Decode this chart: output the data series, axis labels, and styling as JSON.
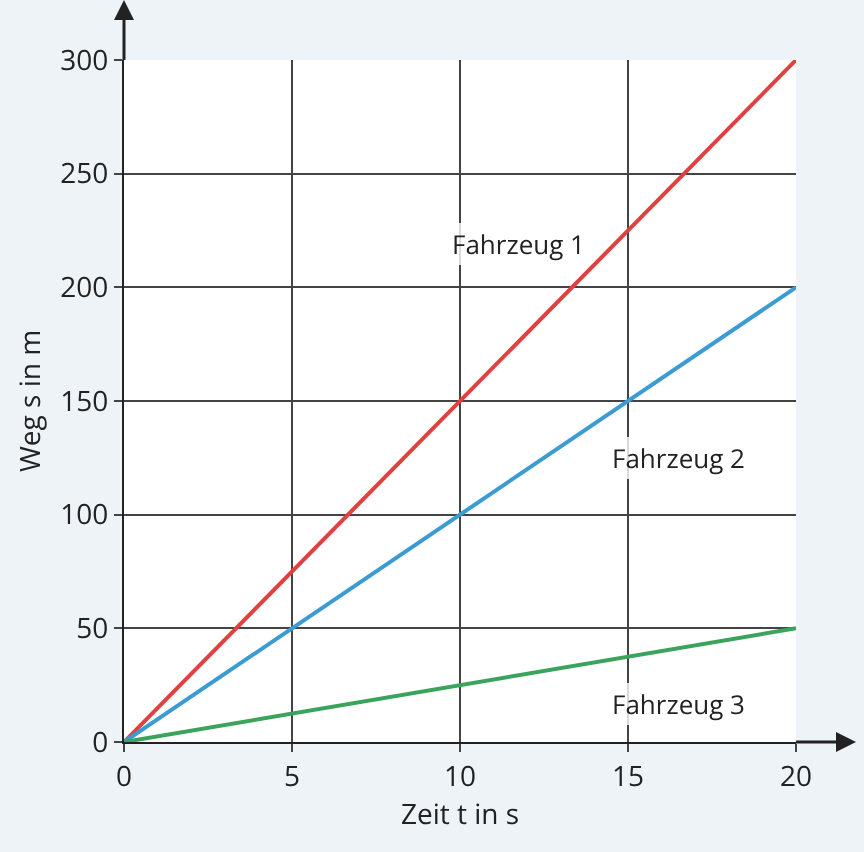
{
  "chart_data": {
    "type": "line",
    "xlabel": "Zeit t in s",
    "ylabel": "Weg s in m",
    "x": [
      0,
      20
    ],
    "series": [
      {
        "name": "Fahrzeug 1",
        "color": "#e0413f",
        "values": [
          0,
          300
        ]
      },
      {
        "name": "Fahrzeug 2",
        "color": "#3b9bd2",
        "values": [
          0,
          200
        ]
      },
      {
        "name": "Fahrzeug 3",
        "color": "#3aa35c",
        "values": [
          0,
          50
        ]
      }
    ],
    "xlim": [
      0,
      20
    ],
    "xticks": [
      0,
      5,
      10,
      15,
      20
    ],
    "ylim": [
      0,
      300
    ],
    "yticks": [
      0,
      50,
      100,
      150,
      200,
      250,
      300
    ],
    "grid": true,
    "marker": "none",
    "line_style": "solid"
  }
}
